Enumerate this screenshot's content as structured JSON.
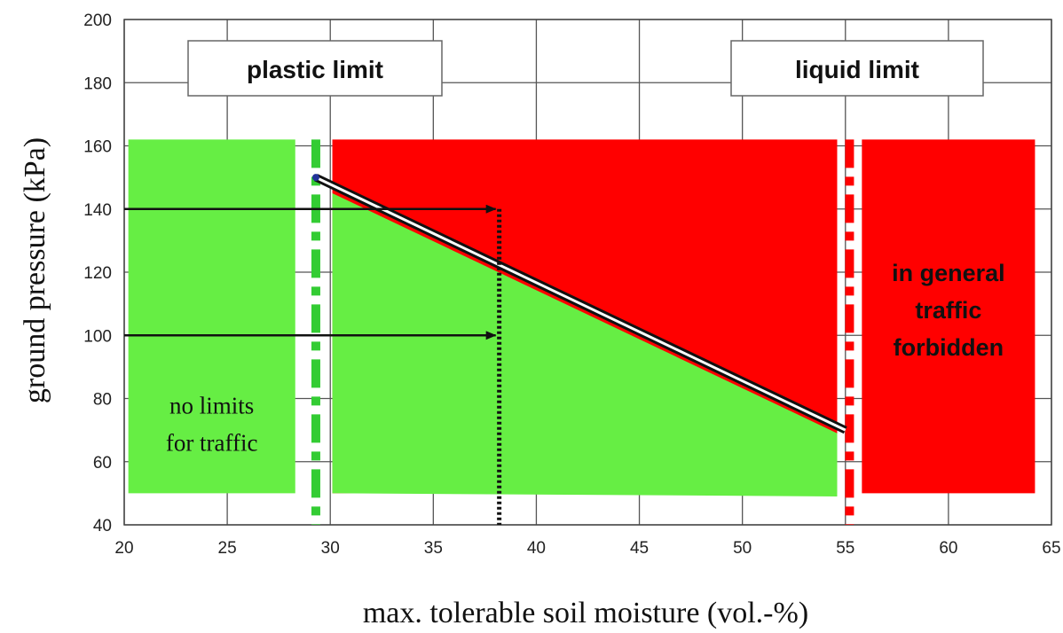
{
  "chart_data": {
    "type": "line",
    "xlabel": "max. tolerable soil moisture (vol.-%)",
    "ylabel": "ground pressure (kPa)",
    "xlim": [
      20,
      65
    ],
    "ylim": [
      40,
      200
    ],
    "x_ticks": [
      20,
      25,
      30,
      35,
      40,
      45,
      50,
      55,
      60,
      65
    ],
    "y_ticks": [
      40,
      60,
      80,
      100,
      120,
      140,
      160,
      180,
      200
    ],
    "grid": true,
    "series": [
      {
        "x": [
          29.3,
          55.0
        ],
        "y": [
          150,
          70
        ]
      }
    ],
    "limits": [
      {
        "label": "plastic limit",
        "x": 29.3,
        "color": "#33cc33"
      },
      {
        "label": "liquid limit",
        "x": 55.2,
        "color": "#ff0000"
      }
    ],
    "zones": [
      {
        "label": [
          "no limits",
          "for traffic"
        ],
        "color": "#66ee44",
        "x": [
          20.2,
          28.3
        ],
        "y": [
          50,
          162
        ]
      },
      {
        "label": [],
        "color": "#ff0000",
        "x": [
          30.1,
          54.6
        ],
        "y": [
          50,
          162
        ]
      },
      {
        "label": [],
        "color": "#66ee44",
        "polygon": [
          [
            30.1,
            145
          ],
          [
            54.6,
            69
          ],
          [
            54.6,
            49
          ],
          [
            30.1,
            50
          ]
        ]
      },
      {
        "label": [
          "in general",
          "traffic",
          "forbidden"
        ],
        "color": "#ff0000",
        "x": [
          55.8,
          64.2
        ],
        "y": [
          50,
          162
        ]
      }
    ],
    "arrows": [
      {
        "from": [
          20,
          140
        ],
        "to": [
          38.2,
          140
        ]
      },
      {
        "from": [
          20,
          100
        ],
        "to": [
          38.2,
          100
        ]
      }
    ],
    "reading_line": {
      "x": 38.2,
      "y": [
        40,
        140
      ]
    }
  }
}
